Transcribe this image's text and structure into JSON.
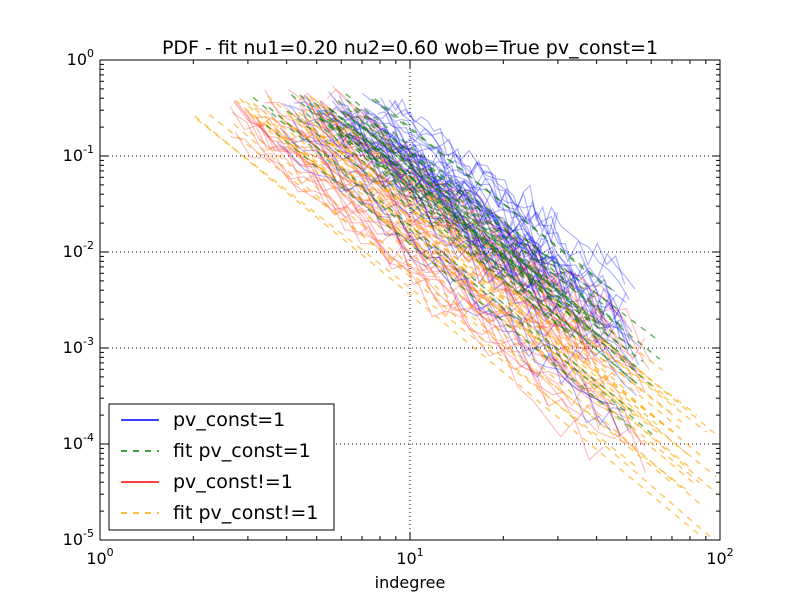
{
  "chart_data": {
    "type": "line",
    "title": "PDF - fit nu1=0.20 nu2=0.60 wob=True pv_const=1",
    "xlabel": "indegree",
    "ylabel": "",
    "x_scale": "log",
    "y_scale": "log",
    "xlim": [
      1,
      100
    ],
    "ylim": [
      1e-05,
      1
    ],
    "grid": true,
    "legend_position": "lower-left",
    "x_ticks": [
      {
        "value": 1,
        "base": "10",
        "exp": "0"
      },
      {
        "value": 10,
        "base": "10",
        "exp": "1"
      },
      {
        "value": 100,
        "base": "10",
        "exp": "2"
      }
    ],
    "y_ticks": [
      {
        "value": 1e-05,
        "base": "10",
        "exp": "-5"
      },
      {
        "value": 0.0001,
        "base": "10",
        "exp": "-4"
      },
      {
        "value": 0.001,
        "base": "10",
        "exp": "-3"
      },
      {
        "value": 0.01,
        "base": "10",
        "exp": "-2"
      },
      {
        "value": 0.1,
        "base": "10",
        "exp": "-1"
      },
      {
        "value": 1,
        "base": "10",
        "exp": "0"
      }
    ],
    "series": [
      {
        "name": "pv_const=1",
        "color": "#0000ff",
        "style": "solid",
        "opacity": 0.3,
        "approx_x_range": [
          3.5,
          55
        ],
        "approx_y_range": [
          0.0002,
          0.4
        ]
      },
      {
        "name": "fit pv_const=1",
        "color": "#008000",
        "style": "dashed",
        "opacity": 0.6,
        "approx_x_range": [
          3,
          65
        ],
        "approx_y_range": [
          0.00015,
          0.45
        ]
      },
      {
        "name": "pv_const!=1",
        "color": "#ff0000",
        "style": "solid",
        "opacity": 0.25,
        "approx_x_range": [
          2.5,
          60
        ],
        "approx_y_range": [
          0.0001,
          0.45
        ]
      },
      {
        "name": "fit pv_const!=1",
        "color": "#ffa500",
        "style": "dashed",
        "opacity": 0.6,
        "approx_x_range": [
          2,
          100
        ],
        "approx_y_range": [
          3e-05,
          0.5
        ]
      }
    ]
  }
}
